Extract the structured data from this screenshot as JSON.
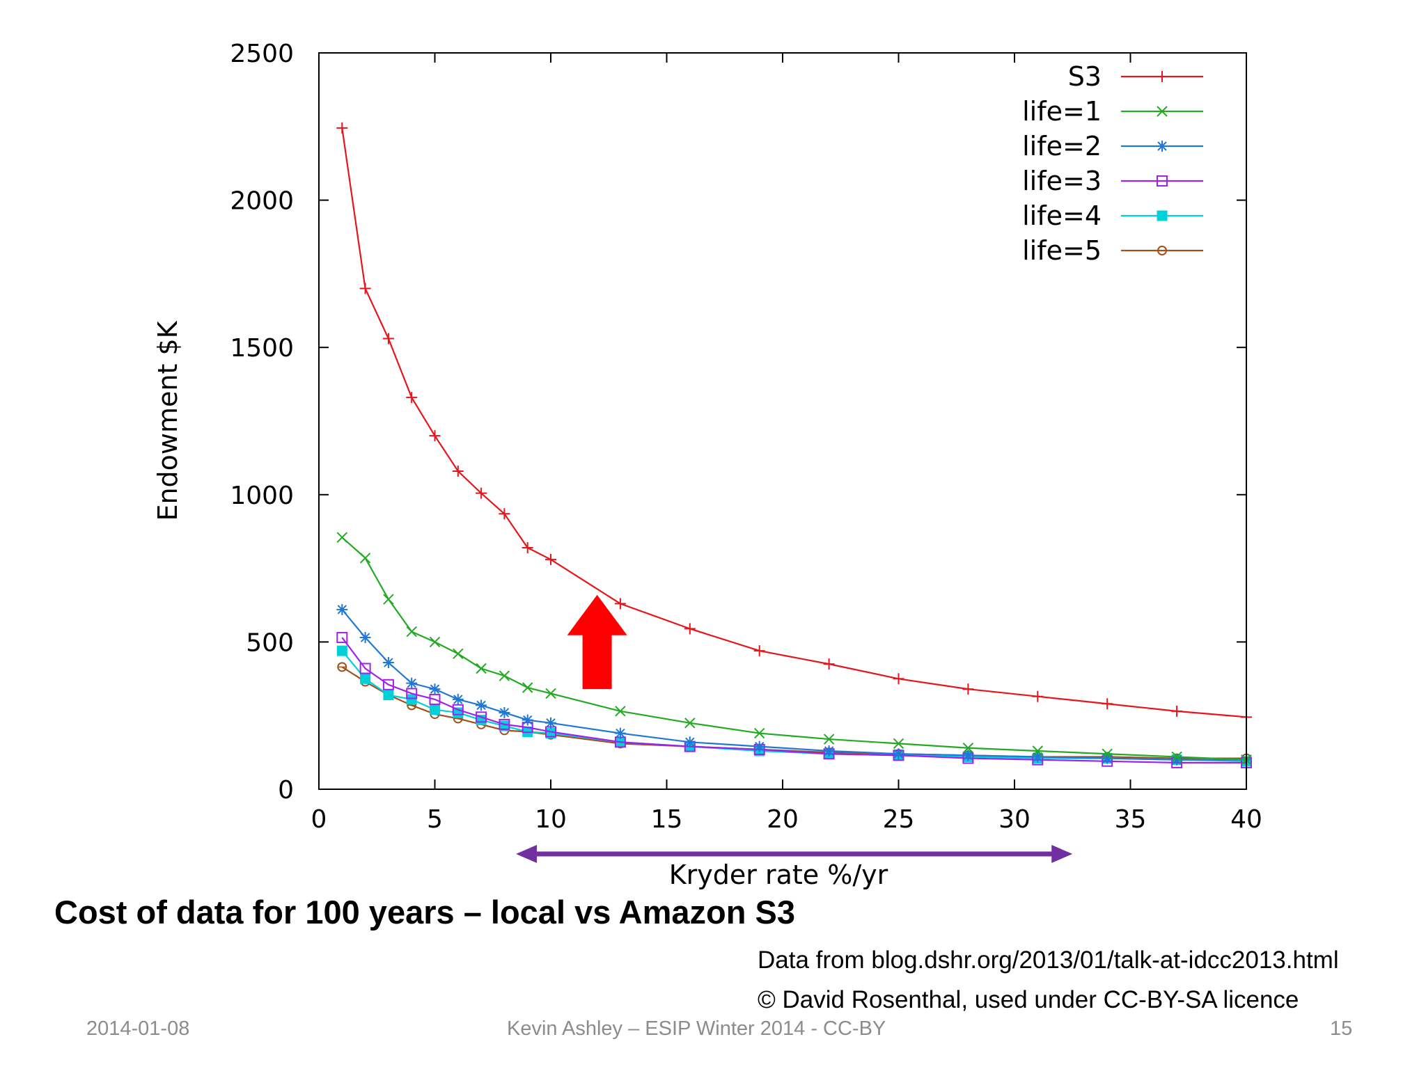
{
  "slide": {
    "caption": "Cost of data for 100 years – local vs Amazon S3",
    "source_line_1": "Data from blog.dshr.org/2013/01/talk-at-idcc2013.html",
    "source_line_2": "© David Rosenthal, used under CC-BY-SA licence",
    "footer_date": "2014-01-08",
    "footer_center": "Kevin Ashley – ESIP Winter 2014 -  CC-BY",
    "footer_page": "15"
  },
  "chart_data": {
    "type": "line",
    "xlabel": "Kryder rate %/yr",
    "ylabel": "Endowment $K",
    "xlim": [
      0,
      40
    ],
    "ylim": [
      0,
      2500
    ],
    "x_ticks": [
      0,
      5,
      10,
      15,
      20,
      25,
      30,
      35,
      40
    ],
    "y_ticks": [
      0,
      500,
      1000,
      1500,
      2000,
      2500
    ],
    "grid": false,
    "legend_position": "top-right",
    "x": [
      1,
      2,
      3,
      4,
      5,
      6,
      7,
      8,
      9,
      10,
      13,
      16,
      19,
      22,
      25,
      28,
      31,
      34,
      37,
      40
    ],
    "series": [
      {
        "name": "S3",
        "color": "#e8141c",
        "marker": "plus",
        "values": [
          2245,
          1700,
          1530,
          1330,
          1200,
          1080,
          1005,
          935,
          820,
          780,
          630,
          545,
          470,
          425,
          375,
          340,
          315,
          290,
          265,
          245
        ]
      },
      {
        "name": "life=1",
        "color": "#22aa22",
        "marker": "cross",
        "values": [
          855,
          785,
          645,
          535,
          500,
          460,
          410,
          385,
          345,
          325,
          265,
          225,
          190,
          170,
          155,
          140,
          130,
          120,
          110,
          100
        ]
      },
      {
        "name": "life=2",
        "color": "#1f78d6",
        "marker": "star",
        "values": [
          610,
          515,
          430,
          360,
          340,
          305,
          285,
          260,
          235,
          225,
          190,
          160,
          145,
          130,
          120,
          115,
          110,
          105,
          100,
          100
        ]
      },
      {
        "name": "life=3",
        "color": "#a020f0",
        "marker": "open-square",
        "values": [
          515,
          410,
          355,
          325,
          305,
          270,
          245,
          220,
          210,
          195,
          160,
          145,
          135,
          120,
          115,
          105,
          100,
          95,
          90,
          90
        ]
      },
      {
        "name": "life=4",
        "color": "#00d0d8",
        "marker": "filled-square",
        "values": [
          470,
          375,
          320,
          305,
          270,
          260,
          235,
          215,
          195,
          190,
          160,
          145,
          130,
          120,
          115,
          110,
          105,
          105,
          100,
          95
        ]
      },
      {
        "name": "life=5",
        "color": "#a0501a",
        "marker": "open-circle",
        "values": [
          415,
          365,
          320,
          285,
          255,
          240,
          220,
          200,
          195,
          185,
          155,
          145,
          135,
          125,
          120,
          115,
          110,
          110,
          105,
          105
        ]
      }
    ],
    "annotations": [
      {
        "type": "up-arrow",
        "color": "#ff0000",
        "x": 12,
        "y_from": 340,
        "y_to": 660
      },
      {
        "type": "double-arrow",
        "color": "#7030a0",
        "x_from": 8.5,
        "x_to": 32.5,
        "below_axis": true
      }
    ]
  }
}
